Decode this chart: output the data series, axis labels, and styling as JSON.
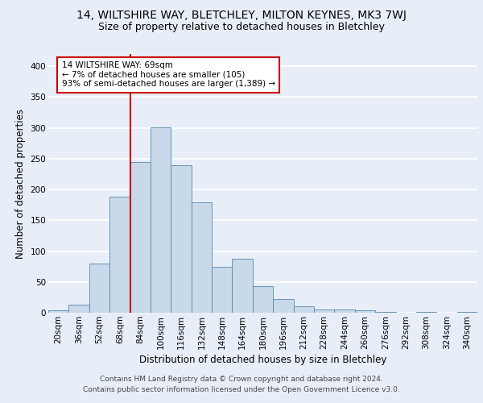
{
  "title_line1": "14, WILTSHIRE WAY, BLETCHLEY, MILTON KEYNES, MK3 7WJ",
  "title_line2": "Size of property relative to detached houses in Bletchley",
  "xlabel": "Distribution of detached houses by size in Bletchley",
  "ylabel": "Number of detached properties",
  "bin_labels": [
    "20sqm",
    "36sqm",
    "52sqm",
    "68sqm",
    "84sqm",
    "100sqm",
    "116sqm",
    "132sqm",
    "148sqm",
    "164sqm",
    "180sqm",
    "196sqm",
    "212sqm",
    "228sqm",
    "244sqm",
    "260sqm",
    "276sqm",
    "292sqm",
    "308sqm",
    "324sqm",
    "340sqm"
  ],
  "bar_values": [
    4,
    13,
    80,
    188,
    245,
    301,
    240,
    180,
    75,
    88,
    43,
    22,
    11,
    6,
    6,
    4,
    2,
    0,
    1,
    0,
    2
  ],
  "bar_color": "#c8d9ea",
  "bar_edge_color": "#5588aa",
  "vline_x": 3.5,
  "vline_color": "#cc0000",
  "annotation_text": "14 WILTSHIRE WAY: 69sqm\n← 7% of detached houses are smaller (105)\n93% of semi-detached houses are larger (1,389) →",
  "annotation_box_color": "#ffffff",
  "annotation_box_edge_color": "#cc0000",
  "ylim": [
    0,
    420
  ],
  "yticks": [
    0,
    50,
    100,
    150,
    200,
    250,
    300,
    350,
    400
  ],
  "footer_line1": "Contains HM Land Registry data © Crown copyright and database right 2024.",
  "footer_line2": "Contains public sector information licensed under the Open Government Licence v3.0.",
  "background_color": "#e8eef8",
  "plot_bg_color": "#e8eef8",
  "grid_color": "#ffffff",
  "title_fontsize": 10,
  "subtitle_fontsize": 9,
  "axis_label_fontsize": 8.5,
  "tick_fontsize": 7.5,
  "footer_fontsize": 6.5,
  "annotation_fontsize": 7.5
}
